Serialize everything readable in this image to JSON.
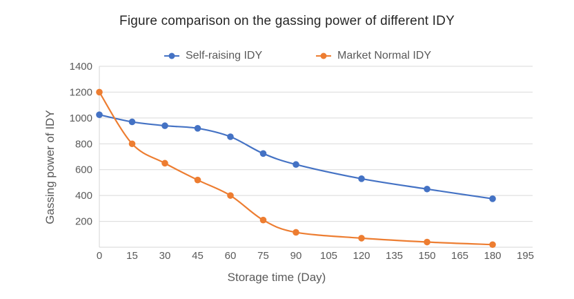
{
  "chart_data": {
    "type": "line",
    "title": "Figure comparison on the gassing power of different IDY",
    "xlabel": "Storage time (Day)",
    "ylabel": "Gassing power of IDY",
    "x": [
      0,
      15,
      30,
      45,
      60,
      75,
      90,
      120,
      150,
      180
    ],
    "series": [
      {
        "name": "Self-raising IDY",
        "color": "#4472C4",
        "values": [
          1025,
          970,
          940,
          920,
          855,
          725,
          640,
          530,
          450,
          375
        ]
      },
      {
        "name": "Market Normal IDY",
        "color": "#ED7D31",
        "values": [
          1200,
          800,
          650,
          520,
          400,
          210,
          115,
          70,
          40,
          20
        ]
      }
    ],
    "x_ticks": [
      0,
      15,
      30,
      45,
      60,
      75,
      90,
      105,
      120,
      135,
      150,
      165,
      180,
      195
    ],
    "y_ticks": [
      200,
      400,
      600,
      800,
      1000,
      1200,
      1400
    ],
    "xlim": [
      0,
      198
    ],
    "ylim": [
      0,
      1400
    ],
    "grid": true,
    "legend_position": "top",
    "line_style": "smooth",
    "marker": "circle",
    "colors": {
      "grid": "#D9D9D9",
      "axis": "#D4D4D4",
      "tick_text": "#595959",
      "title_text": "#262626"
    }
  }
}
